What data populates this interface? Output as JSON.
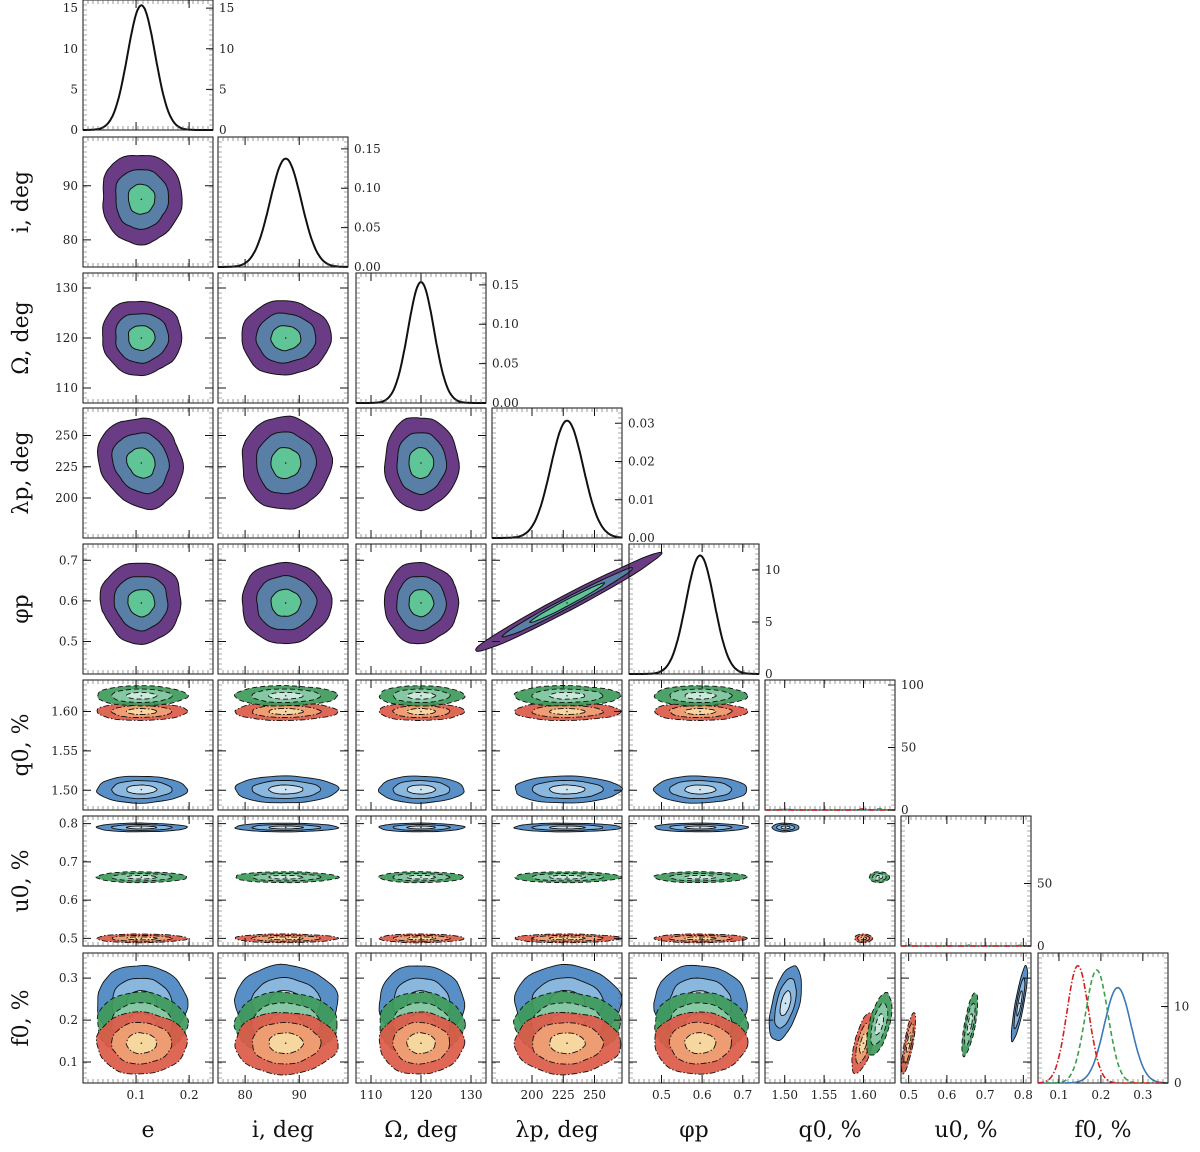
{
  "chart_data": {
    "type": "corner",
    "params": [
      {
        "key": "e",
        "symbol": "e",
        "unit": "",
        "range": [
          0.0,
          0.245
        ],
        "ticks": [
          0.1,
          0.2
        ],
        "tick_labels": [
          "0.1",
          "0.2"
        ],
        "mean": 0.11,
        "sigma": 0.026
      },
      {
        "key": "i",
        "symbol": "i",
        "unit": "deg",
        "range": [
          75,
          99
        ],
        "ticks": [
          80,
          90
        ],
        "tick_labels": [
          "80",
          "90"
        ],
        "mean": 87.5,
        "sigma": 2.9
      },
      {
        "key": "Omega",
        "symbol": "Ω",
        "unit": "deg",
        "range": [
          107,
          133
        ],
        "ticks": [
          110,
          120,
          130
        ],
        "tick_labels": [
          "110",
          "120",
          "130"
        ],
        "mean": 120,
        "sigma": 2.6
      },
      {
        "key": "lambda_p",
        "symbol": "λp",
        "unit": "deg",
        "range": [
          168,
          272
        ],
        "ticks": [
          200,
          225,
          250
        ],
        "tick_labels": [
          "200",
          "225",
          "250"
        ],
        "mean": 228,
        "sigma": 13
      },
      {
        "key": "phi_p",
        "symbol": "φp",
        "unit": "",
        "range": [
          0.42,
          0.74
        ],
        "ticks": [
          0.5,
          0.6,
          0.7
        ],
        "tick_labels": [
          "0.5",
          "0.6",
          "0.7"
        ],
        "mean": 0.595,
        "sigma": 0.035
      },
      {
        "key": "q0",
        "symbol": "q0",
        "unit": "%",
        "range": [
          1.475,
          1.64
        ],
        "ticks": [
          1.5,
          1.55,
          1.6
        ],
        "tick_labels": [
          "1.50",
          "1.55",
          "1.60"
        ],
        "mean": 1.5,
        "sigma": 0.006
      },
      {
        "key": "u0",
        "symbol": "u0",
        "unit": "%",
        "range": [
          0.48,
          0.82
        ],
        "ticks": [
          0.5,
          0.6,
          0.7,
          0.8
        ],
        "tick_labels": [
          "0.5",
          "0.6",
          "0.7",
          "0.8"
        ],
        "mean": 0.79,
        "sigma": 0.004
      },
      {
        "key": "f0",
        "symbol": "f0",
        "unit": "%",
        "range": [
          0.05,
          0.36
        ],
        "ticks": [
          0.1,
          0.2,
          0.3
        ],
        "tick_labels": [
          "0.1",
          "0.2",
          "0.3"
        ],
        "mean": 0.24,
        "sigma": 0.032
      }
    ],
    "axis_labels": {
      "x": [
        "e",
        "i, deg",
        "Ω, deg",
        "λp, deg",
        "φp",
        "q0, %",
        "u0, %",
        "f0, %"
      ],
      "y": [
        "i, deg",
        "Ω, deg",
        "λp, deg",
        "φp",
        "q0, %",
        "u0, %",
        "f0, %"
      ]
    },
    "diagonal_density_ticks": [
      {
        "ticks": [
          0,
          5,
          10,
          15
        ],
        "labels": [
          "0",
          "5",
          "10",
          "15"
        ],
        "ymax": 16
      },
      {
        "ticks": [
          0,
          0.05,
          0.1,
          0.15
        ],
        "labels": [
          "0.00",
          "0.05",
          "0.10",
          "0.15"
        ],
        "ymax": 0.165
      },
      {
        "ticks": [
          0,
          0.05,
          0.1,
          0.15
        ],
        "labels": [
          "0.00",
          "0.05",
          "0.10",
          "0.15"
        ],
        "ymax": 0.165
      },
      {
        "ticks": [
          0,
          0.01,
          0.02,
          0.03
        ],
        "labels": [
          "0.00",
          "0.01",
          "0.02",
          "0.03"
        ],
        "ymax": 0.034
      },
      {
        "ticks": [
          0,
          5,
          10
        ],
        "labels": [
          "0",
          "5",
          "10"
        ],
        "ymax": 12.5
      },
      {
        "ticks": [
          0,
          50,
          100
        ],
        "labels": [
          "0",
          "50",
          "100"
        ],
        "ymax": 104
      },
      {
        "ticks": [
          0,
          50
        ],
        "labels": [
          "0",
          "50"
        ],
        "ymax": 104
      },
      {
        "ticks": [
          0,
          10
        ],
        "labels": [
          "0",
          "10"
        ],
        "ymax": 17
      }
    ],
    "bands": [
      {
        "name": "blue",
        "style": "solid",
        "line_color": "#3a78b6",
        "fills": [
          "#4a86c2",
          "#8dbbdf",
          "#d4e6f3"
        ],
        "q0": 1.501,
        "u0": 0.79,
        "f0": 0.24,
        "sq": 0.006,
        "su": 0.004,
        "sf": 0.032
      },
      {
        "name": "green",
        "style": "dashed",
        "line_color": "#3aa04a",
        "fills": [
          "#3e9a5a",
          "#8ccba9",
          "#d0ece0"
        ],
        "q0": 1.62,
        "u0": 0.66,
        "f0": 0.19,
        "sq": 0.0045,
        "su": 0.005,
        "sf": 0.027
      },
      {
        "name": "red",
        "style": "dashdot",
        "line_color": "#d42020",
        "fills": [
          "#dc5a48",
          "#f0a275",
          "#f6dca4"
        ],
        "q0": 1.6,
        "u0": 0.5,
        "f0": 0.145,
        "sq": 0.004,
        "su": 0.004,
        "sf": 0.026
      }
    ],
    "orbit_contour_fills": [
      "#6b3c86",
      "#5a7fa6",
      "#5fc596"
    ],
    "grid": false,
    "legend": "none"
  }
}
